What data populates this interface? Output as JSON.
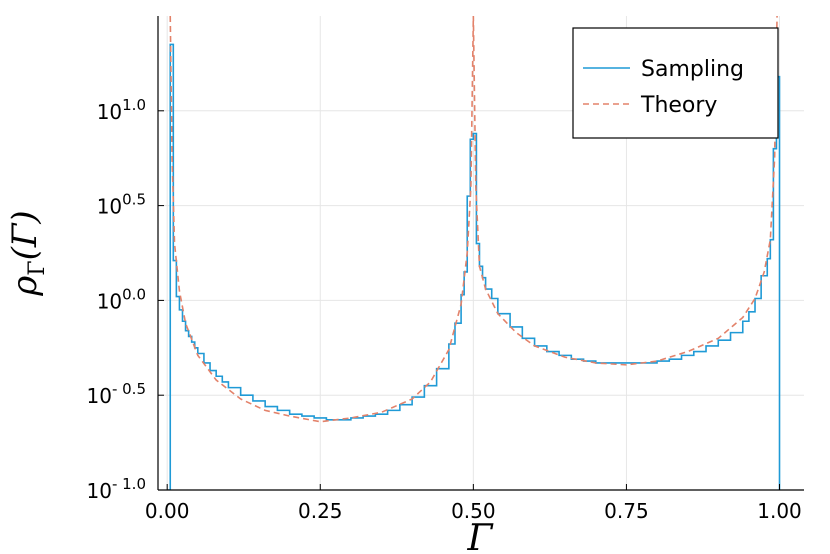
{
  "chart_data": {
    "type": "line",
    "xlabel": "Γ",
    "ylabel": "ρΓ(Γ)",
    "ylabel_main": "ρ",
    "ylabel_sub": "Γ",
    "ylabel_arg": "(Γ)",
    "xlim": [
      -0.015,
      1.04
    ],
    "ylim": [
      -1.0,
      1.5
    ],
    "y_scale": "log10",
    "grid": true,
    "legend_position": "top-right",
    "x_ticks": [
      0.0,
      0.25,
      0.5,
      0.75,
      1.0
    ],
    "x_tick_labels": [
      "0.00",
      "0.25",
      "0.50",
      "0.75",
      "1.00"
    ],
    "y_ticks": [
      -1.0,
      -0.5,
      0.0,
      0.5,
      1.0
    ],
    "y_tick_bases": [
      "10",
      "10",
      "10",
      "10",
      "10"
    ],
    "y_tick_exponents": [
      "- 1.0",
      "- 0.5",
      "0.0",
      "0.5",
      "1.0"
    ],
    "series": [
      {
        "name": "Sampling",
        "style": "steps",
        "color": "#1f9ad6",
        "x": [
          0.0,
          0.005,
          0.01,
          0.015,
          0.02,
          0.025,
          0.03,
          0.035,
          0.04,
          0.045,
          0.05,
          0.06,
          0.07,
          0.08,
          0.09,
          0.1,
          0.12,
          0.14,
          0.16,
          0.18,
          0.2,
          0.22,
          0.24,
          0.26,
          0.28,
          0.3,
          0.32,
          0.34,
          0.36,
          0.38,
          0.4,
          0.42,
          0.44,
          0.46,
          0.47,
          0.48,
          0.485,
          0.49,
          0.495,
          0.5,
          0.505,
          0.51,
          0.515,
          0.52,
          0.53,
          0.54,
          0.56,
          0.58,
          0.6,
          0.62,
          0.64,
          0.66,
          0.68,
          0.7,
          0.72,
          0.74,
          0.76,
          0.78,
          0.8,
          0.82,
          0.84,
          0.86,
          0.88,
          0.9,
          0.92,
          0.94,
          0.95,
          0.96,
          0.97,
          0.98,
          0.985,
          0.99,
          0.995,
          1.0
        ],
        "y": [
          -1.0,
          1.35,
          0.21,
          0.02,
          -0.05,
          -0.11,
          -0.16,
          -0.19,
          -0.22,
          -0.25,
          -0.28,
          -0.33,
          -0.37,
          -0.4,
          -0.43,
          -0.46,
          -0.5,
          -0.53,
          -0.56,
          -0.58,
          -0.6,
          -0.61,
          -0.62,
          -0.63,
          -0.63,
          -0.62,
          -0.61,
          -0.6,
          -0.58,
          -0.55,
          -0.51,
          -0.45,
          -0.36,
          -0.23,
          -0.12,
          0.03,
          0.15,
          0.55,
          0.85,
          0.88,
          0.3,
          0.18,
          0.12,
          0.06,
          0.01,
          -0.07,
          -0.14,
          -0.2,
          -0.24,
          -0.27,
          -0.29,
          -0.31,
          -0.32,
          -0.33,
          -0.33,
          -0.33,
          -0.33,
          -0.33,
          -0.32,
          -0.31,
          -0.29,
          -0.27,
          -0.24,
          -0.21,
          -0.17,
          -0.11,
          -0.06,
          0.01,
          0.13,
          0.22,
          0.32,
          0.8,
          1.18,
          -1.0
        ]
      },
      {
        "name": "Theory",
        "style": "dashed",
        "color": "#e3826a",
        "x": [
          0.005,
          0.008,
          0.012,
          0.02,
          0.03,
          0.05,
          0.08,
          0.12,
          0.16,
          0.2,
          0.25,
          0.3,
          0.35,
          0.4,
          0.43,
          0.46,
          0.48,
          0.49,
          0.496,
          0.5,
          0.504,
          0.51,
          0.52,
          0.54,
          0.57,
          0.6,
          0.65,
          0.7,
          0.75,
          0.8,
          0.85,
          0.9,
          0.94,
          0.96,
          0.975,
          0.985,
          0.992,
          0.996
        ],
        "y": [
          1.5,
          0.75,
          0.3,
          0.05,
          -0.12,
          -0.29,
          -0.42,
          -0.52,
          -0.58,
          -0.61,
          -0.64,
          -0.62,
          -0.59,
          -0.52,
          -0.43,
          -0.26,
          -0.02,
          0.25,
          0.6,
          1.5,
          0.6,
          0.18,
          0.06,
          -0.07,
          -0.17,
          -0.24,
          -0.3,
          -0.33,
          -0.34,
          -0.32,
          -0.27,
          -0.2,
          -0.09,
          0.01,
          0.15,
          0.32,
          0.75,
          1.5
        ]
      }
    ]
  }
}
